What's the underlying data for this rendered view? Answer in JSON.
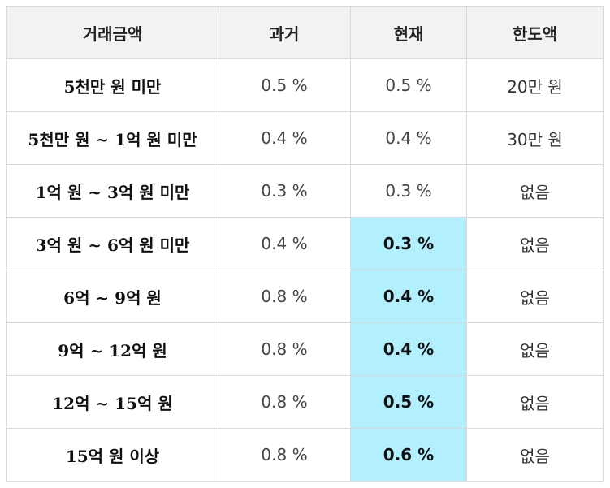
{
  "table": {
    "headers": [
      "거래금액",
      "과거",
      "현재",
      "한도액"
    ],
    "highlight_color": "#b3f0ff",
    "rows": [
      {
        "amount": "5천만 원 미만",
        "past": "0.5 %",
        "current": "0.5 %",
        "limit": "20만 원",
        "highlight": false
      },
      {
        "amount": "5천만 원 ~ 1억 원 미만",
        "past": "0.4 %",
        "current": "0.4 %",
        "limit": "30만 원",
        "highlight": false
      },
      {
        "amount": "1억 원 ~ 3억 원 미만",
        "past": "0.3 %",
        "current": "0.3 %",
        "limit": "없음",
        "highlight": false
      },
      {
        "amount": "3억 원 ~ 6억 원 미만",
        "past": "0.4 %",
        "current": "0.3 %",
        "limit": "없음",
        "highlight": true
      },
      {
        "amount": "6억 ~ 9억 원",
        "past": "0.8 %",
        "current": "0.4 %",
        "limit": "없음",
        "highlight": true
      },
      {
        "amount": "9억 ~ 12억 원",
        "past": "0.8 %",
        "current": "0.4 %",
        "limit": "없음",
        "highlight": true
      },
      {
        "amount": "12억 ~ 15억 원",
        "past": "0.8 %",
        "current": "0.5 %",
        "limit": "없음",
        "highlight": true
      },
      {
        "amount": "15억 원 이상",
        "past": "0.8 %",
        "current": "0.6 %",
        "limit": "없음",
        "highlight": true
      }
    ]
  }
}
